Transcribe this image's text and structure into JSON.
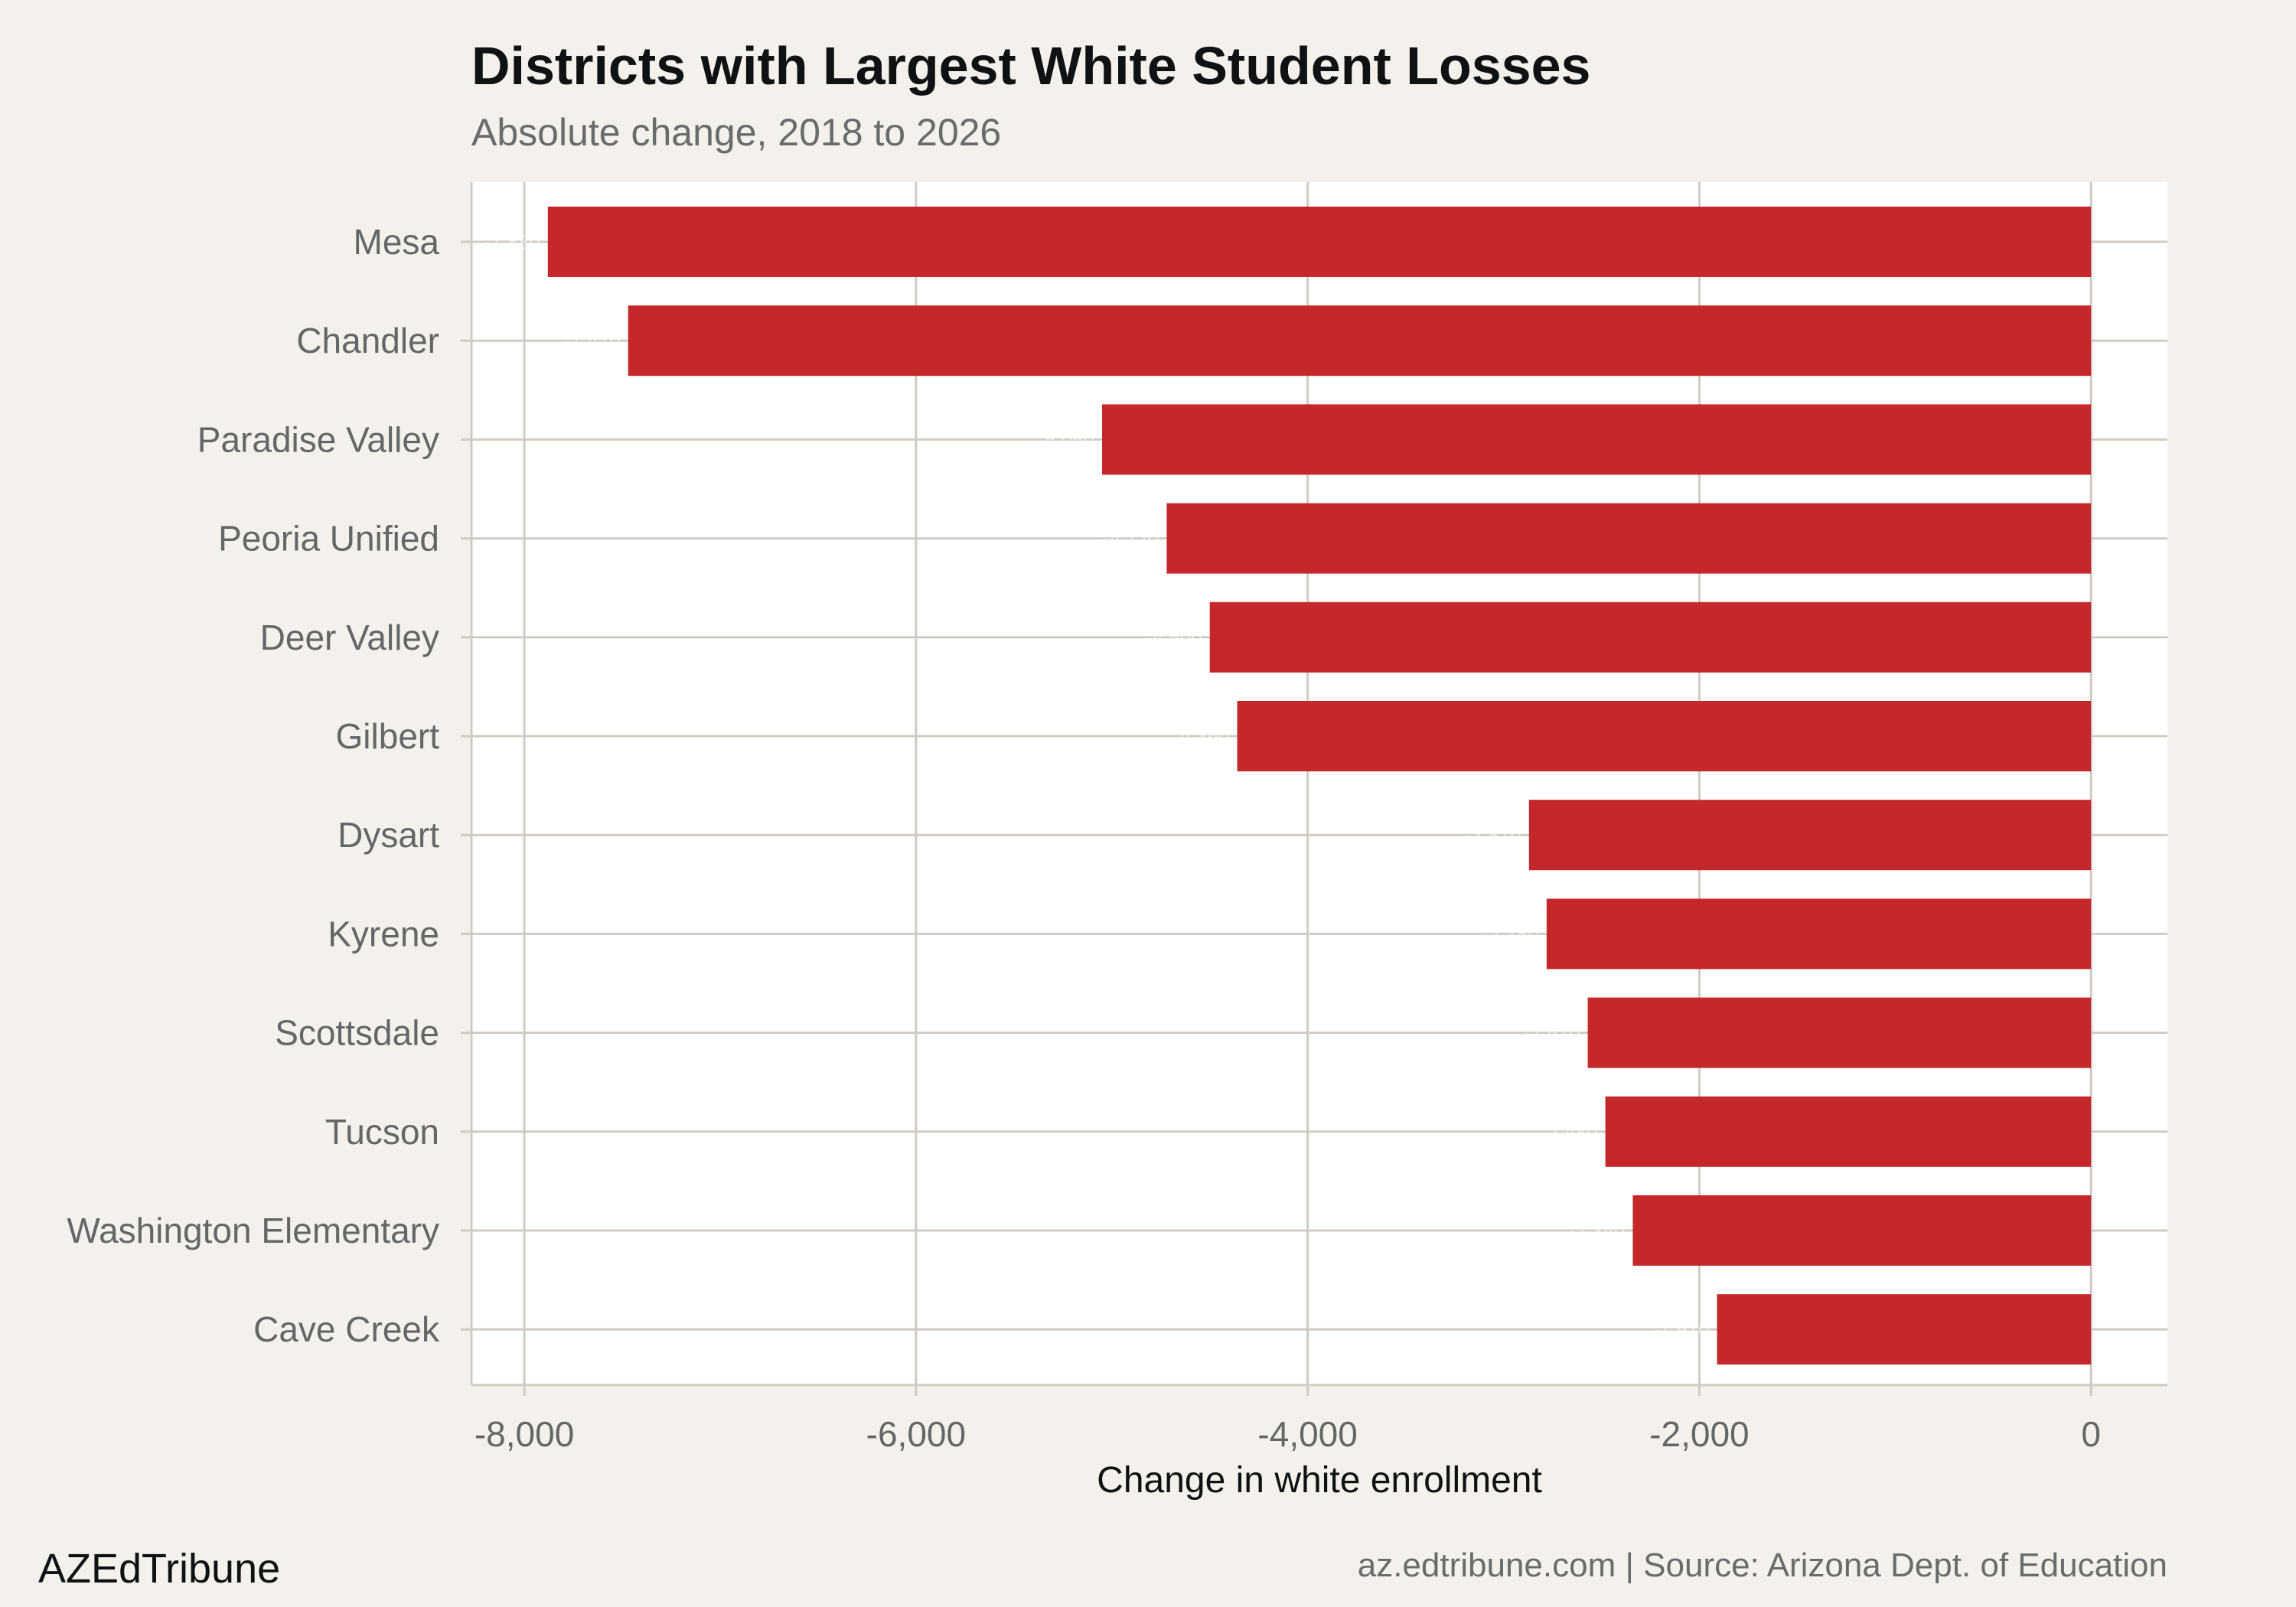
{
  "colors": {
    "bar": "#c4282a",
    "panel": "#ffffff",
    "background": "#f4f1ec",
    "grid": "#cfcbc3"
  },
  "chart_data": {
    "type": "bar",
    "orientation": "horizontal",
    "title": "Districts with Largest White Student Losses",
    "subtitle": "Absolute change, 2018 to 2026",
    "xlabel": "Change in white enrollment",
    "ylabel": "",
    "categories": [
      "Mesa",
      "Chandler",
      "Paradise Valley",
      "Peoria Unified",
      "Deer Valley",
      "Gilbert",
      "Dysart",
      "Kyrene",
      "Scottsdale",
      "Tucson",
      "Washington Elementary",
      "Cave Creek"
    ],
    "values": [
      -7880,
      -7470,
      -5050,
      -4720,
      -4500,
      -4360,
      -2870,
      -2780,
      -2570,
      -2480,
      -2340,
      -1910
    ],
    "data_labels": [
      "-7,880",
      "-7,470",
      "-5,050",
      "-4,720",
      "-4,500",
      "-4,360",
      "-2,870",
      "-2,780",
      "-2,570",
      "-2,480",
      "-2,340",
      "-1,910"
    ],
    "xlim": [
      -8270,
      390
    ],
    "x_ticks": [
      -8000,
      -6000,
      -4000,
      -2000,
      0
    ],
    "x_tick_labels": [
      "-8,000",
      "-6,000",
      "-4,000",
      "-2,000",
      "0"
    ],
    "grid": true,
    "legend": "none"
  },
  "footer": {
    "brand": "AZEdTribune",
    "caption": "az.edtribune.com | Source: Arizona Dept. of Education"
  }
}
